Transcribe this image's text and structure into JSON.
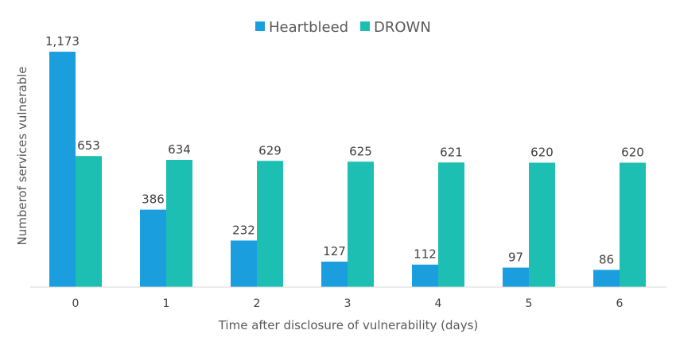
{
  "chart_data": {
    "type": "bar",
    "title": "",
    "xlabel": "Time after disclosure of vulnerability (days)",
    "ylabel": "Numberof services vulnerable",
    "categories": [
      "0",
      "1",
      "2",
      "3",
      "4",
      "5",
      "6"
    ],
    "series": [
      {
        "name": "Heartbleed",
        "color": "#1b9ede",
        "values": [
          1173,
          386,
          232,
          127,
          112,
          97,
          86
        ],
        "labels": [
          "1,173",
          "386",
          "232",
          "127",
          "112",
          "97",
          "86"
        ]
      },
      {
        "name": "DROWN",
        "color": "#1dbfb2",
        "values": [
          653,
          634,
          629,
          625,
          621,
          620,
          620
        ],
        "labels": [
          "653",
          "634",
          "629",
          "625",
          "621",
          "620",
          "620"
        ]
      }
    ],
    "ylim": [
      0,
      1173
    ],
    "grid": false,
    "legend_position": "top-center"
  }
}
